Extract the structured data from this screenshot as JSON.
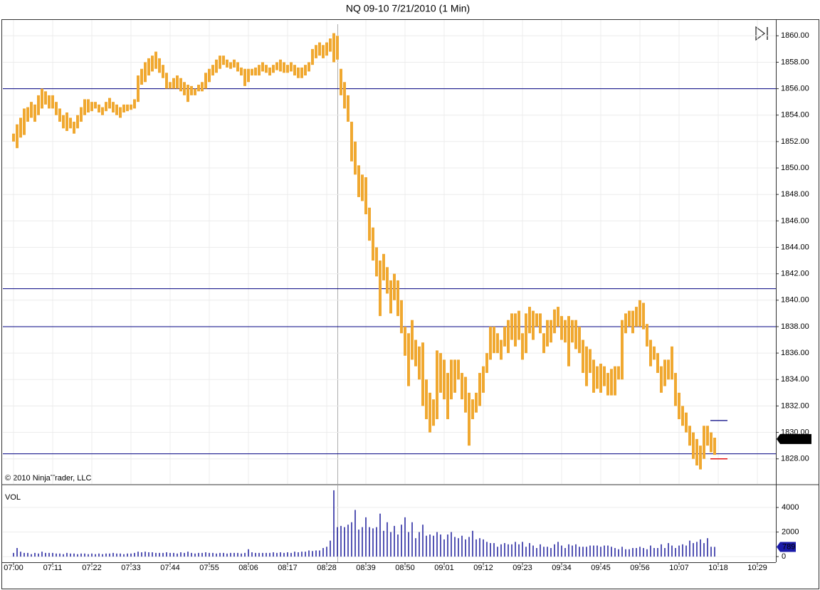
{
  "chart_data": {
    "type": "hilo",
    "title": "NQ 09-10  7/21/2010 (1 Min)",
    "copyright": "© 2010 NinjaTrader, LLC",
    "color": "#f0a830",
    "line_color": "#000080",
    "grid": true,
    "xlim": [
      -3,
      214.2
    ],
    "xticks": [
      {
        "value": 0,
        "label": "07:00"
      },
      {
        "value": 11,
        "label": "07:11"
      },
      {
        "value": 22,
        "label": "07:22"
      },
      {
        "value": 33,
        "label": "07:33"
      },
      {
        "value": 44,
        "label": "07:44"
      },
      {
        "value": 55,
        "label": "07:55"
      },
      {
        "value": 66,
        "label": "08:06"
      },
      {
        "value": 77,
        "label": "08:17"
      },
      {
        "value": 88,
        "label": "08:28"
      },
      {
        "value": 99,
        "label": "08:39"
      },
      {
        "value": 110,
        "label": "08:50"
      },
      {
        "value": 121,
        "label": "09:01"
      },
      {
        "value": 132,
        "label": "09:12"
      },
      {
        "value": 143,
        "label": "09:23"
      },
      {
        "value": 154,
        "label": "09:34"
      },
      {
        "value": 165,
        "label": "09:45"
      },
      {
        "value": 176,
        "label": "09:56"
      },
      {
        "value": 187,
        "label": "10:07"
      },
      {
        "value": 198,
        "label": "10:18"
      },
      {
        "value": 209,
        "label": "10:29"
      }
    ],
    "ylim": [
      1826.1,
      1861.2
    ],
    "yticks": [
      {
        "value": 1828,
        "label": "1828.00"
      },
      {
        "value": 1830,
        "label": "1830.00"
      },
      {
        "value": 1832,
        "label": "1832.00"
      },
      {
        "value": 1834,
        "label": "1834.00"
      },
      {
        "value": 1836,
        "label": "1836.00"
      },
      {
        "value": 1838,
        "label": "1838.00"
      },
      {
        "value": 1840,
        "label": "1840.00"
      },
      {
        "value": 1842,
        "label": "1842.00"
      },
      {
        "value": 1844,
        "label": "1844.00"
      },
      {
        "value": 1846,
        "label": "1846.00"
      },
      {
        "value": 1848,
        "label": "1848.00"
      },
      {
        "value": 1850,
        "label": "1850.00"
      },
      {
        "value": 1852,
        "label": "1852.00"
      },
      {
        "value": 1854,
        "label": "1854.00"
      },
      {
        "value": 1856,
        "label": "1856.00"
      },
      {
        "value": 1858,
        "label": "1858.00"
      },
      {
        "value": 1860,
        "label": "1860.00"
      }
    ],
    "high": [
      1852.6,
      1853.3,
      1853.8,
      1854.5,
      1854.6,
      1855.0,
      1854.8,
      1855.5,
      1856.0,
      1855.8,
      1855.5,
      1855.5,
      1855.0,
      1854.5,
      1854.0,
      1854.2,
      1853.8,
      1853.5,
      1854.0,
      1854.6,
      1855.2,
      1855.2,
      1855.0,
      1855.0,
      1854.8,
      1854.6,
      1855.0,
      1855.3,
      1855.0,
      1854.8,
      1854.6,
      1854.8,
      1854.8,
      1854.8,
      1855.2,
      1857.0,
      1857.5,
      1858.0,
      1858.3,
      1858.5,
      1858.8,
      1858.3,
      1857.8,
      1857.2,
      1856.5,
      1856.8,
      1857.0,
      1856.8,
      1856.5,
      1856.3,
      1856.2,
      1856.0,
      1856.3,
      1856.5,
      1857.2,
      1857.5,
      1857.8,
      1858.2,
      1858.5,
      1858.5,
      1858.2,
      1858.0,
      1858.2,
      1858.0,
      1857.6,
      1857.5,
      1857.5,
      1857.5,
      1857.6,
      1857.8,
      1858.0,
      1857.8,
      1857.6,
      1857.8,
      1858.0,
      1858.2,
      1858.0,
      1857.8,
      1858.0,
      1857.8,
      1857.6,
      1857.6,
      1857.8,
      1858.0,
      1859.0,
      1859.3,
      1859.5,
      1859.3,
      1859.5,
      1859.8,
      1860.2,
      1860.0,
      1857.5,
      1856.5,
      1855.5,
      1853.5,
      1852.0,
      1850.2,
      1849.5,
      1849.3,
      1847.0,
      1845.5,
      1844.0,
      1843.0,
      1843.5,
      1842.5,
      1841.5,
      1842.0,
      1841.5,
      1840.0,
      1838.0,
      1837.5,
      1838.5,
      1837.0,
      1836.5,
      1836.8,
      1834.0,
      1833.0,
      1832.5,
      1836.2,
      1836.0,
      1835.5,
      1834.5,
      1835.5,
      1835.5,
      1835.5,
      1834.5,
      1834.2,
      1833.0,
      1832.5,
      1833.0,
      1834.5,
      1835.0,
      1836.0,
      1838.0,
      1838.0,
      1837.5,
      1837.0,
      1838.0,
      1838.5,
      1839.0,
      1839.0,
      1839.2,
      1837.5,
      1839.0,
      1839.5,
      1839.2,
      1839.0,
      1839.0,
      1837.5,
      1838.5,
      1838.5,
      1839.3,
      1839.5,
      1838.8,
      1838.5,
      1838.8,
      1838.5,
      1838.5,
      1838.0,
      1837.0,
      1836.5,
      1836.3,
      1835.5,
      1835.0,
      1835.2,
      1835.0,
      1834.5,
      1834.8,
      1835.0,
      1835.0,
      1838.5,
      1839.0,
      1839.2,
      1839.2,
      1839.5,
      1840.0,
      1839.8,
      1838.2,
      1837.0,
      1836.5,
      1836.0,
      1835.0,
      1835.5,
      1835.5,
      1836.5,
      1834.5,
      1833.0,
      1832.0,
      1831.5,
      1830.5,
      1830.0,
      1829.5,
      1829.0,
      1830.5,
      1830.5,
      1830.0,
      1829.6
    ],
    "low": [
      1852.0,
      1851.5,
      1852.3,
      1852.5,
      1853.5,
      1853.8,
      1853.5,
      1854.0,
      1854.5,
      1854.8,
      1854.5,
      1854.5,
      1854.0,
      1853.5,
      1853.0,
      1852.8,
      1853.0,
      1852.6,
      1853.0,
      1853.5,
      1854.0,
      1854.2,
      1854.3,
      1854.5,
      1854.2,
      1854.0,
      1854.3,
      1854.5,
      1854.2,
      1854.0,
      1853.8,
      1854.2,
      1854.3,
      1854.4,
      1854.5,
      1855.0,
      1856.3,
      1856.5,
      1857.0,
      1857.3,
      1857.5,
      1857.2,
      1856.8,
      1856.0,
      1856.0,
      1856.0,
      1856.0,
      1855.8,
      1855.5,
      1855.0,
      1855.5,
      1855.5,
      1855.8,
      1855.8,
      1856.0,
      1856.5,
      1857.0,
      1857.2,
      1857.5,
      1857.8,
      1857.6,
      1857.5,
      1857.6,
      1857.3,
      1857.0,
      1856.2,
      1856.5,
      1857.0,
      1857.0,
      1857.0,
      1857.3,
      1857.2,
      1857.0,
      1857.2,
      1857.4,
      1857.3,
      1857.2,
      1857.2,
      1857.3,
      1857.0,
      1856.8,
      1856.8,
      1857.0,
      1857.3,
      1857.8,
      1858.3,
      1858.5,
      1858.3,
      1858.5,
      1858.8,
      1858.0,
      1858.2,
      1855.5,
      1854.5,
      1853.5,
      1850.5,
      1849.5,
      1847.8,
      1847.5,
      1846.5,
      1844.5,
      1843.0,
      1841.8,
      1838.8,
      1841.5,
      1840.5,
      1839.0,
      1840.0,
      1838.8,
      1837.5,
      1835.8,
      1833.5,
      1835.5,
      1835.0,
      1834.0,
      1832.0,
      1831.0,
      1830.0,
      1830.5,
      1831.0,
      1833.0,
      1832.5,
      1831.0,
      1832.5,
      1833.0,
      1834.0,
      1832.5,
      1831.5,
      1829.0,
      1831.0,
      1831.5,
      1832.0,
      1833.0,
      1834.5,
      1835.5,
      1836.0,
      1836.0,
      1835.5,
      1836.5,
      1836.0,
      1837.0,
      1836.5,
      1837.0,
      1835.5,
      1836.0,
      1837.5,
      1837.0,
      1838.0,
      1837.5,
      1836.0,
      1836.5,
      1836.8,
      1837.5,
      1838.0,
      1837.0,
      1836.8,
      1835.0,
      1836.8,
      1836.3,
      1836.0,
      1834.5,
      1833.5,
      1834.5,
      1833.0,
      1833.3,
      1833.0,
      1833.5,
      1832.8,
      1832.8,
      1832.8,
      1834.0,
      1834.0,
      1837.5,
      1838.0,
      1837.5,
      1838.0,
      1838.0,
      1837.8,
      1836.5,
      1835.0,
      1835.5,
      1834.5,
      1833.0,
      1833.5,
      1834.0,
      1834.0,
      1832.0,
      1831.0,
      1830.5,
      1830.0,
      1829.0,
      1828.0,
      1827.5,
      1827.2,
      1828.0,
      1829.0,
      1828.5,
      1828.3
    ],
    "hlines": [
      1856.0,
      1840.87,
      1838.0,
      1828.38
    ],
    "markers": [
      {
        "value": 1830.9,
        "color": "#000080"
      },
      {
        "value": 1828.0,
        "color": "#e00000"
      }
    ],
    "last_price": {
      "value": 1829.5,
      "label": "1829.50"
    },
    "volume": {
      "label": "VOL",
      "color": "#1a1a9a",
      "ylim": [
        -460,
        5800
      ],
      "yticks": [
        0,
        2000,
        4000
      ],
      "values": [
        300,
        700,
        400,
        300,
        300,
        200,
        300,
        250,
        400,
        300,
        300,
        300,
        250,
        250,
        200,
        300,
        250,
        250,
        200,
        250,
        250,
        200,
        250,
        200,
        250,
        200,
        250,
        250,
        300,
        250,
        250,
        200,
        250,
        250,
        300,
        400,
        350,
        400,
        350,
        350,
        300,
        300,
        300,
        350,
        300,
        300,
        250,
        350,
        300,
        400,
        300,
        250,
        300,
        300,
        350,
        300,
        300,
        250,
        300,
        300,
        250,
        300,
        300,
        300,
        250,
        300,
        600,
        350,
        300,
        300,
        300,
        300,
        300,
        350,
        300,
        350,
        300,
        350,
        300,
        400,
        350,
        400,
        400,
        500,
        450,
        500,
        500,
        700,
        800,
        1300,
        5400,
        2400,
        2500,
        2400,
        2600,
        2800,
        3800,
        2200,
        2400,
        3200,
        2400,
        2300,
        2400,
        3500,
        2100,
        2800,
        2000,
        2500,
        1800,
        2600,
        3200,
        2000,
        2800,
        1500,
        2000,
        2600,
        1700,
        1800,
        1700,
        2000,
        1800,
        1400,
        1800,
        2000,
        1600,
        1500,
        1700,
        1400,
        1600,
        2100,
        1400,
        1500,
        1400,
        1200,
        1100,
        1100,
        800,
        1000,
        1100,
        1000,
        1000,
        1200,
        1000,
        1200,
        800,
        1100,
        900,
        700,
        1000,
        800,
        800,
        700,
        1000,
        1200,
        900,
        700,
        1000,
        900,
        1000,
        800,
        800,
        800,
        900,
        900,
        900,
        800,
        900,
        900,
        800,
        700,
        600,
        800,
        600,
        600,
        700,
        700,
        800,
        700,
        600,
        900,
        700,
        700,
        1000,
        700,
        1100,
        900,
        700,
        900,
        1000,
        900,
        1300,
        1100,
        1200,
        1400,
        1100,
        1500,
        800,
        789
      ]
    }
  }
}
